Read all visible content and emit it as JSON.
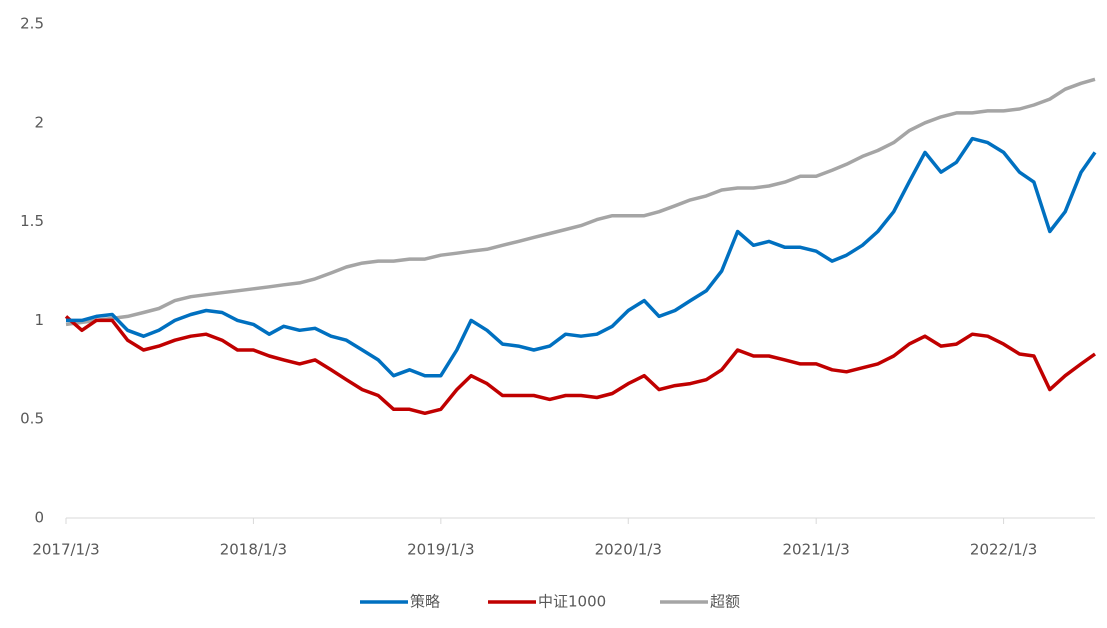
{
  "chart_data": {
    "type": "line",
    "x": [
      "2017/1/3",
      "2017/2/3",
      "2017/3/3",
      "2017/4/3",
      "2017/5/3",
      "2017/6/3",
      "2017/7/3",
      "2017/8/3",
      "2017/9/3",
      "2017/10/3",
      "2017/11/3",
      "2017/12/3",
      "2018/1/3",
      "2018/2/3",
      "2018/3/3",
      "2018/4/3",
      "2018/5/3",
      "2018/6/3",
      "2018/7/3",
      "2018/8/3",
      "2018/9/3",
      "2018/10/3",
      "2018/11/3",
      "2018/12/3",
      "2019/1/3",
      "2019/2/3",
      "2019/3/3",
      "2019/4/3",
      "2019/5/3",
      "2019/6/3",
      "2019/7/3",
      "2019/8/3",
      "2019/9/3",
      "2019/10/3",
      "2019/11/3",
      "2019/12/3",
      "2020/1/3",
      "2020/2/3",
      "2020/3/3",
      "2020/4/3",
      "2020/5/3",
      "2020/6/3",
      "2020/7/3",
      "2020/8/3",
      "2020/9/3",
      "2020/10/3",
      "2020/11/3",
      "2020/12/3",
      "2021/1/3",
      "2021/2/3",
      "2021/3/3",
      "2021/4/3",
      "2021/5/3",
      "2021/6/3",
      "2021/7/3",
      "2021/8/3",
      "2021/9/3",
      "2021/10/3",
      "2021/11/3",
      "2021/12/3",
      "2022/1/3",
      "2022/2/3",
      "2022/3/3",
      "2022/4/3",
      "2022/5/3",
      "2022/6/3",
      "2022/6/30"
    ],
    "series": [
      {
        "name": "策略",
        "color": "#0070c0",
        "values": [
          1.0,
          1.0,
          1.02,
          1.03,
          0.95,
          0.92,
          0.95,
          1.0,
          1.03,
          1.05,
          1.04,
          1.0,
          0.98,
          0.93,
          0.97,
          0.95,
          0.96,
          0.92,
          0.9,
          0.85,
          0.8,
          0.72,
          0.75,
          0.72,
          0.72,
          0.85,
          1.0,
          0.95,
          0.88,
          0.87,
          0.85,
          0.87,
          0.93,
          0.92,
          0.93,
          0.97,
          1.05,
          1.1,
          1.02,
          1.05,
          1.1,
          1.15,
          1.25,
          1.45,
          1.38,
          1.4,
          1.37,
          1.37,
          1.35,
          1.3,
          1.33,
          1.38,
          1.45,
          1.55,
          1.7,
          1.85,
          1.75,
          1.8,
          1.92,
          1.9,
          1.85,
          1.75,
          1.7,
          1.45,
          1.55,
          1.75,
          1.85
        ]
      },
      {
        "name": "中证1000",
        "color": "#c00000",
        "values": [
          1.02,
          0.95,
          1.0,
          1.0,
          0.9,
          0.85,
          0.87,
          0.9,
          0.92,
          0.93,
          0.9,
          0.85,
          0.85,
          0.82,
          0.8,
          0.78,
          0.8,
          0.75,
          0.7,
          0.65,
          0.62,
          0.55,
          0.55,
          0.53,
          0.55,
          0.65,
          0.72,
          0.68,
          0.62,
          0.62,
          0.62,
          0.6,
          0.62,
          0.62,
          0.61,
          0.63,
          0.68,
          0.72,
          0.65,
          0.67,
          0.68,
          0.7,
          0.75,
          0.85,
          0.82,
          0.82,
          0.8,
          0.78,
          0.78,
          0.75,
          0.74,
          0.76,
          0.78,
          0.82,
          0.88,
          0.92,
          0.87,
          0.88,
          0.93,
          0.92,
          0.88,
          0.83,
          0.82,
          0.65,
          0.72,
          0.78,
          0.83
        ]
      },
      {
        "name": "超额",
        "color": "#a5a5a5",
        "values": [
          0.98,
          0.99,
          1.0,
          1.01,
          1.02,
          1.04,
          1.06,
          1.1,
          1.12,
          1.13,
          1.14,
          1.15,
          1.16,
          1.17,
          1.18,
          1.19,
          1.21,
          1.24,
          1.27,
          1.29,
          1.3,
          1.3,
          1.31,
          1.31,
          1.33,
          1.34,
          1.35,
          1.36,
          1.38,
          1.4,
          1.42,
          1.44,
          1.46,
          1.48,
          1.51,
          1.53,
          1.53,
          1.53,
          1.55,
          1.58,
          1.61,
          1.63,
          1.66,
          1.67,
          1.67,
          1.68,
          1.7,
          1.73,
          1.73,
          1.76,
          1.79,
          1.83,
          1.86,
          1.9,
          1.96,
          2.0,
          2.03,
          2.05,
          2.05,
          2.06,
          2.06,
          2.07,
          2.09,
          2.12,
          2.17,
          2.2,
          2.22
        ]
      }
    ],
    "xlim": [
      "2017/1/3",
      "2022/6/30"
    ],
    "xticks": [
      "2017/1/3",
      "2018/1/3",
      "2019/1/3",
      "2020/1/3",
      "2021/1/3",
      "2022/1/3"
    ],
    "ylim": [
      0,
      2.5
    ],
    "yticks": [
      0,
      0.5,
      1,
      1.5,
      2,
      2.5
    ],
    "legend": "bottom"
  }
}
